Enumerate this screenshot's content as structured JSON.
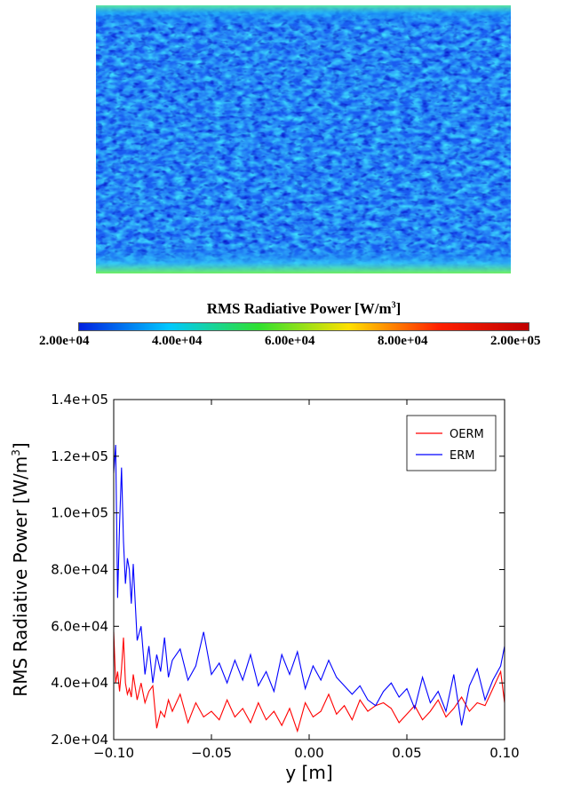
{
  "field_plot": {
    "description_colorscale": "jet",
    "colorbar": {
      "title": "RMS Radiative Power [W/m",
      "title_sup": "3",
      "title_end": "]",
      "ticks": [
        "2.00e+04",
        "4.00e+04",
        "6.00e+04",
        "8.00e+04",
        "2.00e+05"
      ],
      "colors": [
        "#0020e0",
        "#00c8ff",
        "#30e030",
        "#ffe000",
        "#ff2000",
        "#c00000"
      ]
    }
  },
  "chart_data": {
    "type": "line",
    "xlabel": "y [m]",
    "ylabel": "RMS Radiative Power [W/m",
    "ylabel_sup": "3",
    "ylabel_end": "]",
    "xlim": [
      -0.1,
      0.1
    ],
    "ylim": [
      20000,
      140000
    ],
    "xticks": [
      "−0.10",
      "−0.05",
      "0.00",
      "0.05",
      "0.10"
    ],
    "yticks": [
      "2.0e+04",
      "4.0e+04",
      "6.0e+04",
      "8.0e+04",
      "1.0e+05",
      "1.2e+05",
      "1.4e+05"
    ],
    "legend_position": "top-right",
    "x": [
      -0.1,
      -0.099,
      -0.098,
      -0.097,
      -0.096,
      -0.095,
      -0.094,
      -0.093,
      -0.092,
      -0.091,
      -0.09,
      -0.088,
      -0.086,
      -0.084,
      -0.082,
      -0.08,
      -0.078,
      -0.076,
      -0.074,
      -0.072,
      -0.07,
      -0.066,
      -0.062,
      -0.058,
      -0.054,
      -0.05,
      -0.046,
      -0.042,
      -0.038,
      -0.034,
      -0.03,
      -0.026,
      -0.022,
      -0.018,
      -0.014,
      -0.01,
      -0.006,
      -0.002,
      0.002,
      0.006,
      0.01,
      0.014,
      0.018,
      0.022,
      0.026,
      0.03,
      0.034,
      0.038,
      0.042,
      0.046,
      0.05,
      0.054,
      0.058,
      0.062,
      0.066,
      0.07,
      0.074,
      0.078,
      0.082,
      0.086,
      0.09,
      0.094,
      0.098,
      0.1
    ],
    "series": [
      {
        "name": "OERM",
        "color": "#ff0000",
        "values": [
          58000,
          40000,
          44000,
          37000,
          45000,
          56000,
          40000,
          36000,
          38000,
          35000,
          43000,
          34000,
          40000,
          33000,
          37000,
          39000,
          24000,
          30000,
          28000,
          34000,
          30000,
          36000,
          26000,
          33000,
          28000,
          30000,
          27000,
          34000,
          28000,
          31000,
          26000,
          33000,
          27000,
          30000,
          25000,
          31000,
          23000,
          33000,
          28000,
          30000,
          36000,
          29000,
          32000,
          27000,
          34000,
          30000,
          32000,
          33000,
          31000,
          26000,
          29000,
          32000,
          27000,
          30000,
          34000,
          28000,
          31000,
          35000,
          30000,
          33000,
          32000,
          38000,
          44000,
          33000
        ]
      },
      {
        "name": "ERM",
        "color": "#0000ff",
        "values": [
          114000,
          124000,
          70000,
          96000,
          116000,
          90000,
          75000,
          84000,
          80000,
          68000,
          82000,
          55000,
          60000,
          43000,
          53000,
          40000,
          50000,
          44000,
          56000,
          42000,
          48000,
          52000,
          41000,
          46000,
          58000,
          43000,
          47000,
          40000,
          48000,
          41000,
          50000,
          39000,
          44000,
          37000,
          50000,
          43000,
          51000,
          38000,
          46000,
          41000,
          48000,
          42000,
          39000,
          36000,
          39000,
          34000,
          32000,
          37000,
          40000,
          35000,
          38000,
          31000,
          42000,
          33000,
          37000,
          30000,
          43000,
          25000,
          39000,
          45000,
          34000,
          41000,
          46000,
          53000
        ]
      }
    ]
  }
}
